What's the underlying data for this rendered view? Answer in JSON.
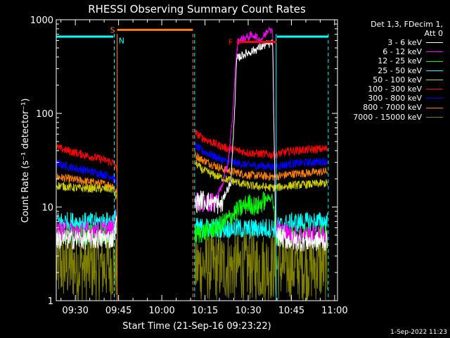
{
  "chart_data": {
    "type": "line",
    "title": "RHESSI Observing Summary Count Rates",
    "xlabel": "Start Time (21-Sep-16 09:23:22)",
    "ylabel": "Count Rate (s⁻¹ detector⁻¹)",
    "yscale": "log",
    "ylim": [
      1,
      1000
    ],
    "xlim_minutes": [
      563.37,
      661
    ],
    "x_ticks": [
      {
        "label": "09:30",
        "min": 570
      },
      {
        "label": "09:45",
        "min": 585
      },
      {
        "label": "10:00",
        "min": 600
      },
      {
        "label": "10:15",
        "min": 615
      },
      {
        "label": "10:30",
        "min": 630
      },
      {
        "label": "10:45",
        "min": 645
      },
      {
        "label": "11:00",
        "min": 660
      }
    ],
    "y_ticks": [
      {
        "label": "1",
        "value": 1
      },
      {
        "label": "10",
        "value": 10
      },
      {
        "label": "100",
        "value": 100
      },
      {
        "label": "1000",
        "value": 1000
      }
    ],
    "legend_header": [
      "Det 1,3, FDecim 1,",
      "Att 0"
    ],
    "series": [
      {
        "name": "3 - 6 keV",
        "color": "#ffffff",
        "segments": [
          [
            [
              563.5,
              4.5
            ],
            [
              575,
              4.5
            ],
            [
              583,
              4.6
            ],
            [
              584.5,
              7
            ]
          ],
          [
            [
              611.5,
              11
            ],
            [
              614,
              12
            ],
            [
              618,
              11
            ],
            [
              621,
              10.5
            ],
            [
              622,
              14
            ],
            [
              624,
              18
            ],
            [
              625.5,
              150
            ],
            [
              626,
              380
            ],
            [
              628,
              420
            ],
            [
              632,
              470
            ],
            [
              636,
              540
            ],
            [
              638.5,
              560
            ],
            [
              639.5,
              5
            ],
            [
              645,
              4.3
            ],
            [
              657.5,
              4.3
            ]
          ]
        ]
      },
      {
        "name": "6 - 12 keV",
        "color": "#ff00ff",
        "segments": [
          [
            [
              563.5,
              5.5
            ],
            [
              575,
              5.5
            ],
            [
              583,
              5.8
            ],
            [
              584.5,
              7.5
            ]
          ],
          [
            [
              611.5,
              12
            ],
            [
              614,
              11
            ],
            [
              618,
              11
            ],
            [
              621,
              17
            ],
            [
              623,
              30
            ],
            [
              624.5,
              80
            ],
            [
              625.5,
              300
            ],
            [
              626.5,
              600
            ],
            [
              629,
              640
            ],
            [
              632,
              690
            ],
            [
              634,
              600
            ],
            [
              636,
              700
            ],
            [
              637.5,
              860
            ],
            [
              638.5,
              700
            ],
            [
              639.5,
              6
            ],
            [
              645,
              5
            ],
            [
              657.5,
              5
            ]
          ]
        ]
      },
      {
        "name": "12 - 25 keV",
        "color": "#00ff00",
        "segments": [
          [
            [
              563.5,
              5.0
            ],
            [
              575,
              5.0
            ],
            [
              583,
              5.2
            ],
            [
              584.5,
              6.5
            ]
          ],
          [
            [
              611.5,
              5
            ],
            [
              615,
              5.5
            ],
            [
              619,
              6
            ],
            [
              622,
              7
            ],
            [
              626,
              9
            ],
            [
              630,
              11
            ],
            [
              633,
              10
            ],
            [
              636,
              12
            ],
            [
              638.5,
              13
            ],
            [
              639.5,
              5
            ],
            [
              645,
              5
            ],
            [
              657.5,
              5
            ]
          ]
        ]
      },
      {
        "name": "25 - 50 keV",
        "color": "#00ffff",
        "segments": [
          [
            [
              563.5,
              7
            ],
            [
              575,
              6.8
            ],
            [
              583,
              7
            ],
            [
              584.5,
              8
            ]
          ],
          [
            [
              611.5,
              6
            ],
            [
              620,
              6
            ],
            [
              630,
              5.8
            ],
            [
              639,
              6
            ],
            [
              645,
              6.8
            ],
            [
              657.5,
              7
            ]
          ]
        ]
      },
      {
        "name": "50 - 100 keV",
        "color": "#cccc00",
        "segments": [
          [
            [
              563.5,
              17
            ],
            [
              570,
              16
            ],
            [
              583,
              15.5
            ],
            [
              584.5,
              12
            ]
          ],
          [
            [
              611.5,
              30
            ],
            [
              614,
              25
            ],
            [
              618,
              22
            ],
            [
              622,
              20
            ],
            [
              630,
              17
            ],
            [
              639,
              16
            ],
            [
              645,
              17
            ],
            [
              657.5,
              18
            ]
          ]
        ]
      },
      {
        "name": "100 - 300 keV",
        "color": "#ff0000",
        "segments": [
          [
            [
              563.5,
              43
            ],
            [
              570,
              38
            ],
            [
              578,
              33
            ],
            [
              583,
              30
            ],
            [
              584.5,
              25
            ]
          ],
          [
            [
              611.5,
              62
            ],
            [
              614,
              55
            ],
            [
              618,
              48
            ],
            [
              622,
              43
            ],
            [
              630,
              38
            ],
            [
              639,
              36
            ],
            [
              645,
              40
            ],
            [
              657.5,
              42
            ]
          ]
        ]
      },
      {
        "name": "300 - 800 keV",
        "color": "#0000ff",
        "segments": [
          [
            [
              563.5,
              29
            ],
            [
              570,
              26
            ],
            [
              578,
              23
            ],
            [
              583,
              21
            ],
            [
              584.5,
              18
            ]
          ],
          [
            [
              611.5,
              45
            ],
            [
              614,
              40
            ],
            [
              618,
              35
            ],
            [
              622,
              31
            ],
            [
              630,
              28
            ],
            [
              639,
              27
            ],
            [
              645,
              29
            ],
            [
              657.5,
              31
            ]
          ]
        ]
      },
      {
        "name": "800 - 7000 keV",
        "color": "#ff8000",
        "segments": [
          [
            [
              563.5,
              21
            ],
            [
              570,
              19.5
            ],
            [
              578,
              18
            ],
            [
              583,
              17
            ],
            [
              584.5,
              14
            ]
          ],
          [
            [
              611.5,
              36
            ],
            [
              614,
              32
            ],
            [
              618,
              28
            ],
            [
              622,
              25
            ],
            [
              630,
              22
            ],
            [
              639,
              21
            ],
            [
              645,
              22.5
            ],
            [
              657.5,
              24
            ]
          ]
        ]
      },
      {
        "name": "7000 - 15000 keV",
        "color": "#808000",
        "segments": [
          [
            [
              563.5,
              1.8
            ],
            [
              575,
              1.8
            ],
            [
              584.5,
              1.8
            ]
          ],
          [
            [
              611.5,
              1.8
            ],
            [
              625,
              1.8
            ],
            [
              639,
              1.8
            ],
            [
              645,
              1.8
            ],
            [
              657.5,
              1.8
            ]
          ]
        ]
      }
    ],
    "attenuator_bars": [
      {
        "label": "",
        "color": "#00ffff",
        "y": 660,
        "x": [
          563.5,
          583.2
        ]
      },
      {
        "label": "S",
        "color": "#ff8000",
        "y": 780,
        "x": [
          584.5,
          610.8
        ]
      },
      {
        "label": "F",
        "color": "#ff0000",
        "y": 580,
        "x": [
          626.0,
          639.8
        ]
      },
      {
        "label": "",
        "color": "#00ffff",
        "y": 660,
        "x": [
          640.0,
          657.8
        ]
      }
    ],
    "markers": [
      {
        "label": "N",
        "color": "#00ffff",
        "x": 584.3
      }
    ],
    "vlines": [
      {
        "color": "#00ffff",
        "x": 583.5,
        "style": "dashed"
      },
      {
        "color": "#ff8000",
        "x": 584.5,
        "style": "solid"
      },
      {
        "color": "#ff8000",
        "x": 610.8,
        "style": "dashed"
      },
      {
        "color": "#00ffff",
        "x": 611.4,
        "style": "dashed"
      },
      {
        "color": "#00ffff",
        "x": 639.7,
        "style": "solid"
      },
      {
        "color": "#00ffff",
        "x": 657.8,
        "style": "dashed"
      }
    ],
    "footer_timestamp": "1-Sep-2022 11:23"
  }
}
